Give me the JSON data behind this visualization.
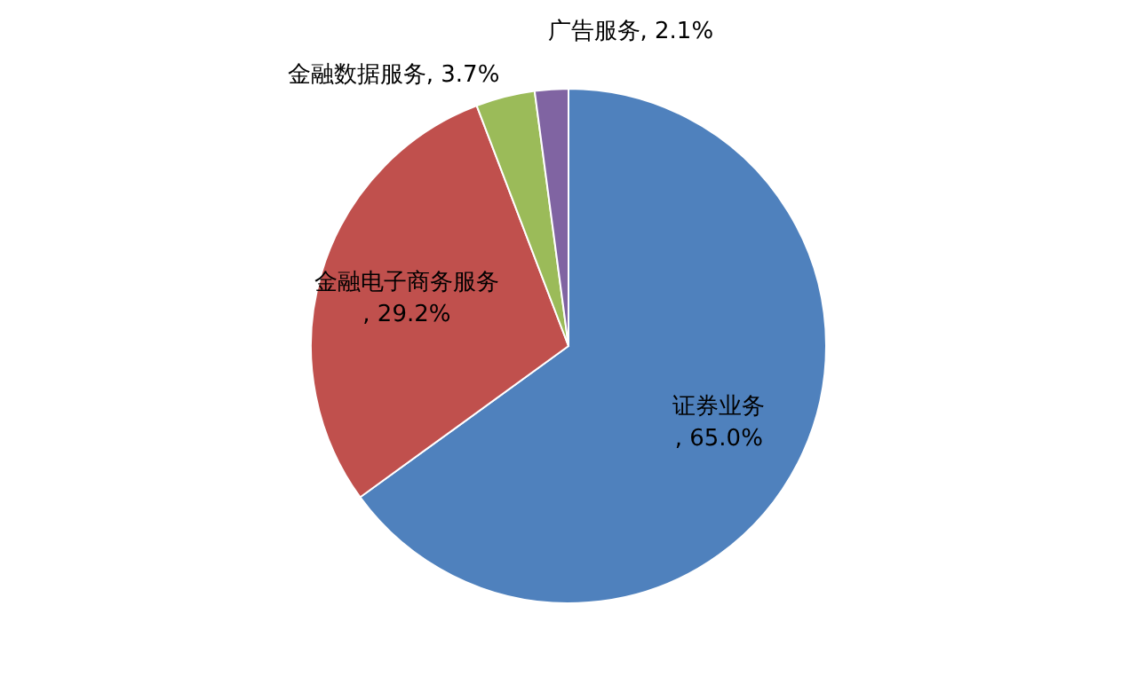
{
  "chart_data": {
    "type": "pie",
    "categories": [
      "证券业务",
      "金融电子商务服务",
      "金融数据服务",
      "广告服务"
    ],
    "values": [
      65.0,
      29.2,
      3.7,
      2.1
    ],
    "colors": [
      "#4f81bd",
      "#c0504d",
      "#9bbb59",
      "#8064a2"
    ],
    "value_labels": [
      ", 65.0%",
      ", 29.2%",
      ", 3.7%",
      ", 2.1%"
    ]
  }
}
